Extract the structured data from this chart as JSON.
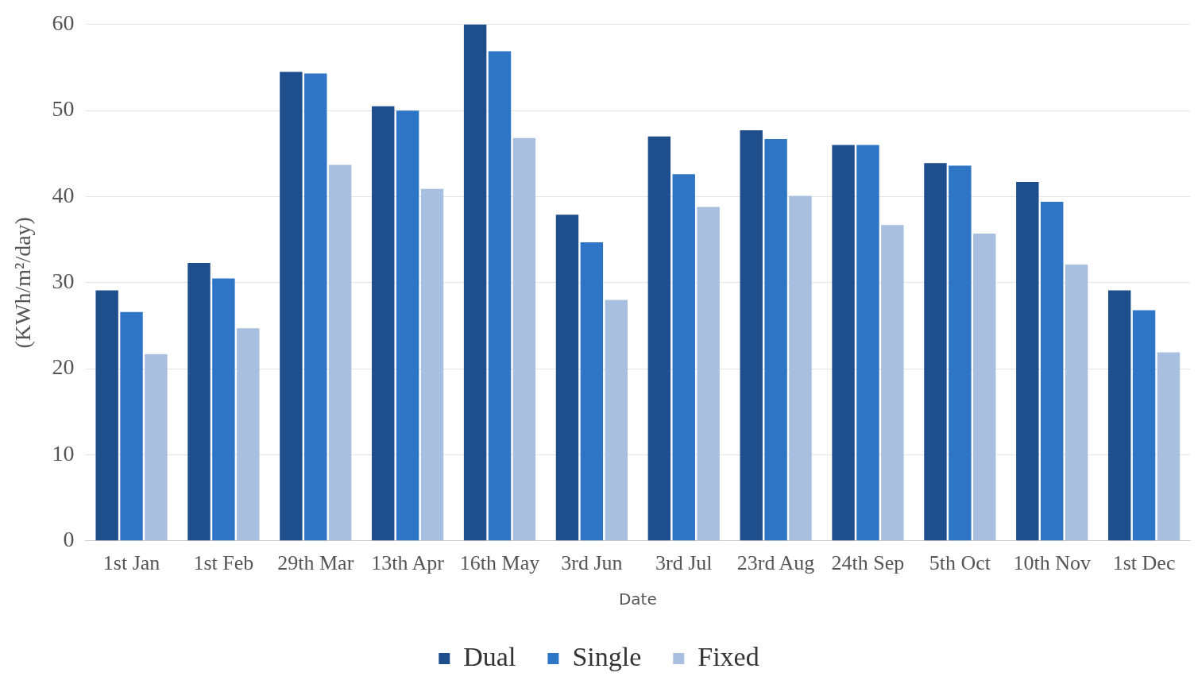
{
  "chart_data": {
    "type": "bar",
    "xlabel": "Date",
    "ylabel": "(KWh/m²/day)",
    "categories": [
      "1st Jan",
      "1st Feb",
      "29th Mar",
      "13th Apr",
      "16th May",
      "3rd Jun",
      "3rd Jul",
      "23rd Aug",
      "24th Sep",
      "5th Oct",
      "10th Nov",
      "1st Dec"
    ],
    "series": [
      {
        "name": "Dual",
        "color": "#1f4e8c",
        "values": [
          29.1,
          32.3,
          54.5,
          50.5,
          60,
          37.9,
          47,
          47.7,
          46,
          43.9,
          41.7,
          29.1
        ]
      },
      {
        "name": "Single",
        "color": "#2e75c6",
        "values": [
          26.6,
          30.5,
          54.3,
          50,
          56.9,
          34.7,
          42.6,
          46.7,
          46,
          43.6,
          39.4,
          26.8
        ]
      },
      {
        "name": "Fixed",
        "color": "#a9bfe0",
        "values": [
          21.7,
          24.7,
          43.7,
          40.9,
          46.8,
          28,
          38.8,
          40.1,
          36.7,
          35.7,
          32.1,
          21.9
        ]
      }
    ],
    "ylim": [
      0,
      60
    ],
    "yticks": [
      0,
      10,
      20,
      30,
      40,
      50,
      60
    ],
    "grid": "y",
    "legend": "bottom"
  }
}
